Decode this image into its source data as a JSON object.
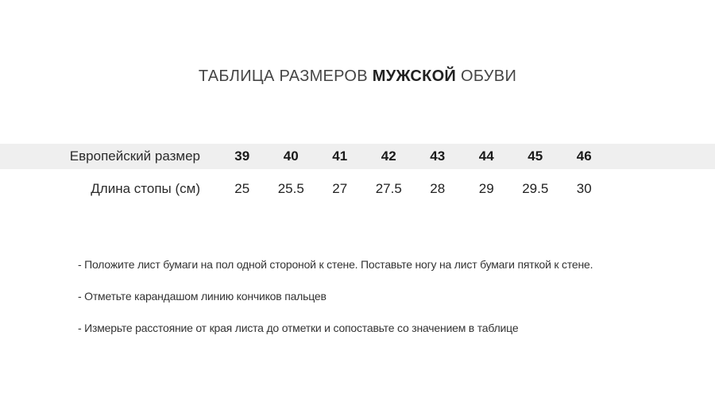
{
  "title": {
    "prefix": "ТАБЛИЦА РАЗМЕРОВ ",
    "bold": "МУЖСКОЙ",
    "suffix": " ОБУВИ"
  },
  "table": {
    "rows": [
      {
        "label": "Европейский размер",
        "values": [
          "39",
          "40",
          "41",
          "42",
          "43",
          "44",
          "45",
          "46"
        ]
      },
      {
        "label": "Длина стопы (см)",
        "values": [
          "25",
          "25.5",
          "27",
          "27.5",
          "28",
          "29",
          "29.5",
          "30"
        ]
      }
    ]
  },
  "instructions": [
    "- Положите лист бумаги на пол одной стороной к стене. Поставьте ногу на лист бумаги пяткой к стене.",
    "- Отметьте карандашом линию кончиков пальцев",
    "- Измерьте расстояние от края листа до отметки и сопоставьте со значением в таблице"
  ],
  "colors": {
    "background": "#ffffff",
    "row_highlight": "#efefef",
    "title_text": "#454545",
    "title_bold_text": "#222222",
    "table_text": "#222222",
    "instruction_text": "#333333"
  }
}
